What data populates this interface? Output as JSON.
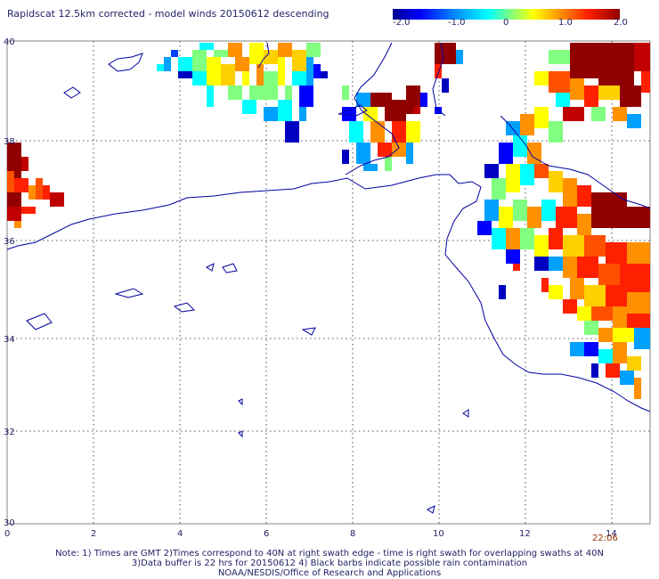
{
  "header": {
    "title": "Rapidscat 12.5km corrected - model winds 20150612 descending"
  },
  "colorbar": {
    "labels": [
      "-2.0",
      "-1.0",
      "0",
      "1.0",
      "2.0"
    ],
    "colors": [
      "#000090",
      "#0000ff",
      "#00a0ff",
      "#00ffff",
      "#80ff80",
      "#ffff00",
      "#ff9000",
      "#ff2000",
      "#900000"
    ]
  },
  "axes": {
    "x_ticks": [
      "0",
      "2",
      "4",
      "6",
      "8",
      "10",
      "12",
      "14"
    ],
    "y_ticks": [
      "40",
      "38",
      "36",
      "34",
      "32",
      "30"
    ]
  },
  "time_stamp": "22:06",
  "footer": {
    "note1": "Note: 1) Times are GMT 2)Times correspond to 40N at right swath edge - time is right swath for overlapping swaths at 40N",
    "note2": "3)Data buffer is 22 hrs for 20150612 4) Black barbs indicate possible rain contamination",
    "note3": "NOAA/NESDIS/Office of Research and Applications"
  }
}
